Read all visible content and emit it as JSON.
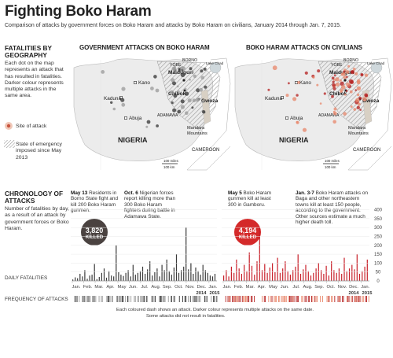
{
  "title": "Fighting Boko Haram",
  "subtitle": "Comparison of attacks by government forces on Boko Haram and attacks by Boko Haram on civilians, January 2014 through Jan. 7, 2015.",
  "geo": {
    "heading": "FATALITIES BY GEOGRAPHY",
    "text": "Each dot on the map represents an attack that has resulted in fatalities. Darker colour represents multiple attacks in the same area.",
    "legend_site": "Site of attack",
    "legend_emergency": "State of emergency imposed since May 2013"
  },
  "maps": {
    "gov_title": "GOVERNMENT ATTACKS ON BOKO HARAM",
    "civ_title": "BOKO HARAM ATTACKS ON CIVILIANS",
    "labels": {
      "kano": "Kano",
      "kaduna": "Kaduna",
      "abuja": "Abuja",
      "nigeria": "NIGERIA",
      "chibok": "Chibok",
      "gwoza": "Gwoza",
      "maiduguri": "Maiduguri",
      "yobe": "YOBE",
      "borno": "BORNO",
      "adamawa": "ADAMAWA",
      "lake": "Lake Chad",
      "mandara": "Mandara Mountains",
      "cameroon": "CAMEROON",
      "scale1": "100 miles",
      "scale2": "100 km"
    }
  },
  "chron": {
    "heading": "CHRONOLOGY OF ATTACKS",
    "text": "Number of fatalities by day, as a result of an attack by government forces or Boko Haram.",
    "daily_label": "DAILY FATALITIES",
    "freq_label": "FREQUENCY OF ATTACKS",
    "freq_note1": "Each coloured dash shows an attack. Darker colour represents multiple attacks on the same date.",
    "freq_note2": "Some attacks did not result in fatalities.",
    "gov_total": "3,820",
    "civ_total": "4,194",
    "killed": "KILLED",
    "ann_may13_date": "May 13",
    "ann_may13": "Residents in Borno State fight and kill 200 Boko Haram gunmen.",
    "ann_oct6_date": "Oct. 6",
    "ann_oct6": "Nigerian forces report killing more than 300 Boko Haram fighters during battle in Adamawa State.",
    "ann_may5_date": "May 5",
    "ann_may5": "Boko Haram gunmen kill at least 300 in Gamboru.",
    "ann_jan3_date": "Jan. 3-7",
    "ann_jan3": "Boko Haram attacks on Baga and other northeastern towns kill at least 150 people, according to the government. Other sources estimate a much higher death toll."
  },
  "colors": {
    "gov": "#3a3a3a",
    "civ": "#c8202a",
    "dark": "#4a4240",
    "red": "#d42a2a"
  },
  "chart_data": {
    "type": "bar",
    "x_tick_labels": [
      "Jan.",
      "Feb.",
      "Mar.",
      "Apr.",
      "May",
      "Jun.",
      "Jul.",
      "Aug.",
      "Sep.",
      "Oct.",
      "Nov.",
      "Dec.",
      "Jan."
    ],
    "year_labels": [
      "2014",
      "2015"
    ],
    "y_ticks": [
      0,
      50,
      100,
      150,
      200,
      250,
      300,
      350,
      400
    ],
    "ylim": [
      0,
      420
    ],
    "series": [
      {
        "name": "Government attacks on Boko Haram",
        "values": [
          8,
          20,
          15,
          40,
          25,
          60,
          12,
          30,
          35,
          95,
          10,
          22,
          45,
          70,
          18,
          55,
          30,
          25,
          200,
          50,
          35,
          28,
          45,
          60,
          25,
          90,
          35,
          45,
          55,
          80,
          40,
          65,
          110,
          30,
          50,
          70,
          25,
          90,
          60,
          120,
          55,
          35,
          75,
          150,
          45,
          60,
          80,
          300,
          65,
          100,
          40,
          75,
          55,
          35,
          90,
          60,
          45,
          30,
          25,
          40
        ]
      },
      {
        "name": "Boko Haram attacks on civilians",
        "values": [
          30,
          60,
          25,
          80,
          45,
          120,
          70,
          40,
          90,
          55,
          160,
          85,
          35,
          110,
          300,
          60,
          95,
          45,
          75,
          100,
          50,
          130,
          45,
          70,
          110,
          55,
          35,
          60,
          80,
          150,
          40,
          65,
          90,
          55,
          30,
          45,
          70,
          100,
          60,
          40,
          85,
          30,
          110,
          60,
          45,
          70,
          40,
          130,
          55,
          70,
          90,
          65,
          150,
          40,
          55,
          80,
          120
        ]
      }
    ]
  }
}
